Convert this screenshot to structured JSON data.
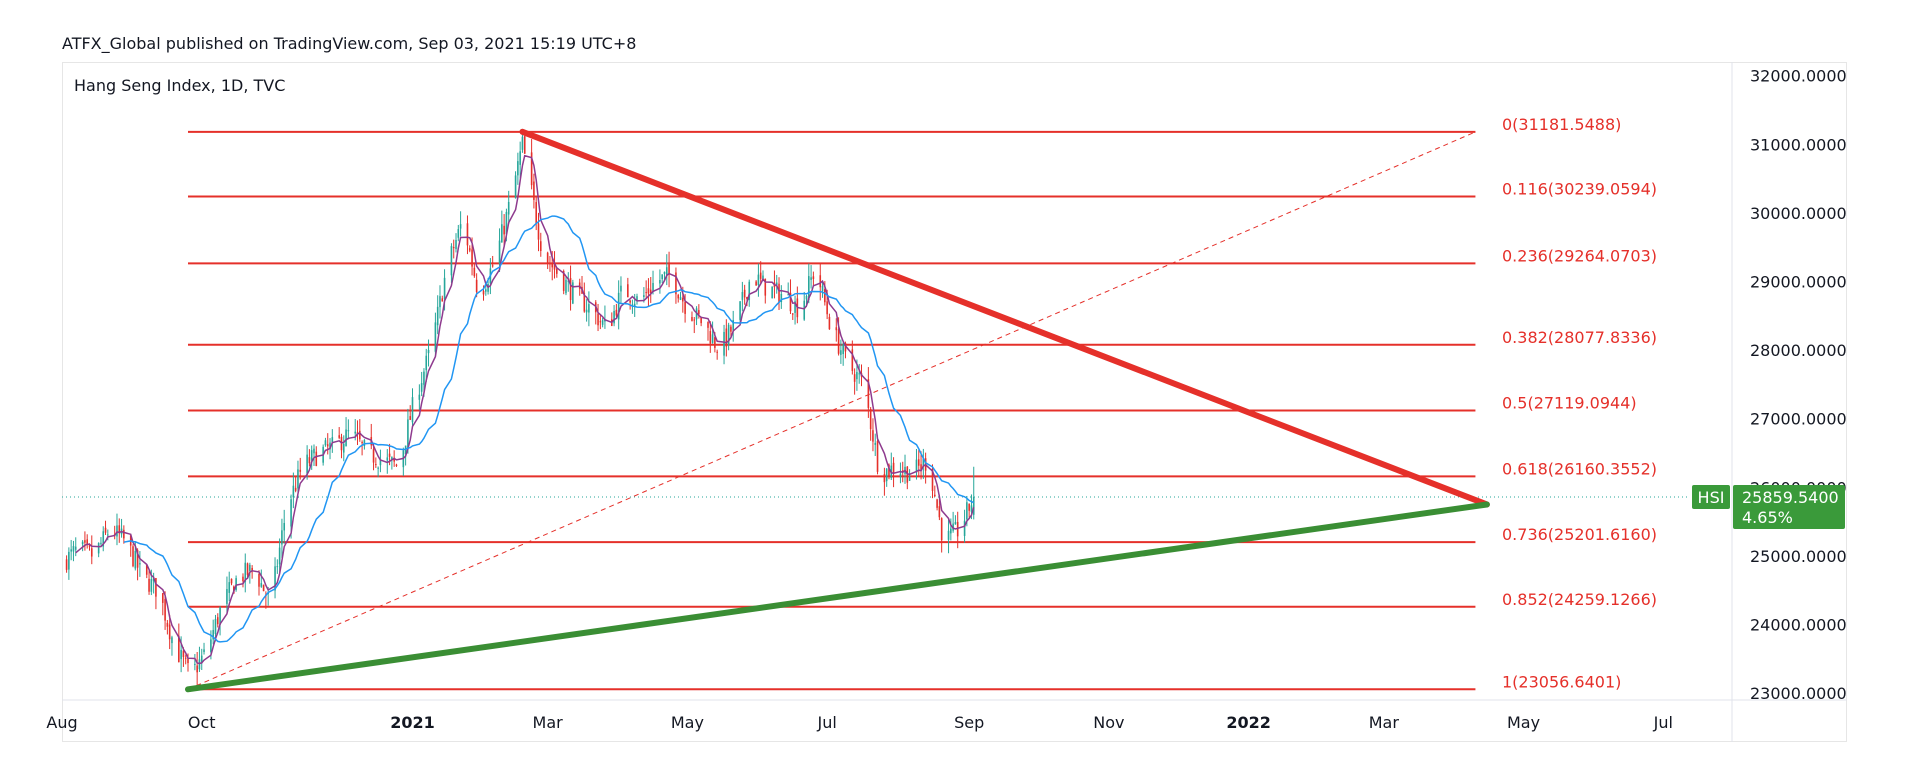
{
  "header": {
    "publish_line": "ATFX_Global published on TradingView.com, Sep 03, 2021 15:19 UTC+8"
  },
  "chart": {
    "symbol_line": "Hang Seng Index, 1D, TVC"
  },
  "price_tag": {
    "symbol": "HSI",
    "price": "25859.5400",
    "change": "4.65%"
  },
  "colors": {
    "fib_line": "#e5302a",
    "up_candle": "#26a69a",
    "down_candle": "#e5302a",
    "resistance_line": "#e5302a",
    "support_line": "#3a8e34",
    "ma_fast": "#8e3a8e",
    "ma_slow": "#2196f3",
    "price_tag_bg": "#3a9a3a"
  },
  "chart_data": {
    "type": "candlestick",
    "ylim": [
      22900,
      32200
    ],
    "xlim": [
      "2020-08-01",
      "2022-07-31"
    ],
    "y_ticks": [
      "23000.0000",
      "24000.0000",
      "25000.0000",
      "26000.0000",
      "27000.0000",
      "28000.0000",
      "29000.0000",
      "30000.0000",
      "31000.0000",
      "32000.0000"
    ],
    "x_ticks": [
      {
        "label": "Aug",
        "date": "2020-08-01",
        "bold": false
      },
      {
        "label": "Oct",
        "date": "2020-10-01",
        "bold": false
      },
      {
        "label": "2021",
        "date": "2021-01-01",
        "bold": true
      },
      {
        "label": "Mar",
        "date": "2021-03-01",
        "bold": false
      },
      {
        "label": "May",
        "date": "2021-05-01",
        "bold": false
      },
      {
        "label": "Jul",
        "date": "2021-07-01",
        "bold": false
      },
      {
        "label": "Sep",
        "date": "2021-09-01",
        "bold": false
      },
      {
        "label": "Nov",
        "date": "2021-11-01",
        "bold": false
      },
      {
        "label": "2022",
        "date": "2022-01-01",
        "bold": true
      },
      {
        "label": "Mar",
        "date": "2022-03-01",
        "bold": false
      },
      {
        "label": "May",
        "date": "2022-05-01",
        "bold": false
      },
      {
        "label": "Jul",
        "date": "2022-07-01",
        "bold": false
      }
    ],
    "fib_levels": [
      {
        "label": "0(31181.5488)",
        "value": 31181.5488
      },
      {
        "label": "0.116(30239.0594)",
        "value": 30239.0594
      },
      {
        "label": "0.236(29264.0703)",
        "value": 29264.0703
      },
      {
        "label": "0.382(28077.8336)",
        "value": 28077.8336
      },
      {
        "label": "0.5(27119.0944)",
        "value": 27119.0944
      },
      {
        "label": "0.618(26160.3552)",
        "value": 26160.3552
      },
      {
        "label": "0.736(25201.6160)",
        "value": 25201.616
      },
      {
        "label": "0.852(24259.1266)",
        "value": 24259.1266
      },
      {
        "label": "1(23056.6401)",
        "value": 23056.6401
      }
    ],
    "fib_start": "2020-09-25",
    "fib_end": "2022-04-10",
    "resistance_trendline": [
      [
        "2021-02-18",
        31183
      ],
      [
        "2022-04-15",
        25750
      ]
    ],
    "support_trendline": [
      [
        "2020-09-25",
        23056
      ],
      [
        "2022-04-15",
        25750
      ]
    ],
    "dashed_fib_diagonal": [
      [
        "2020-09-25",
        23056
      ],
      [
        "2022-04-10",
        31181
      ]
    ],
    "last_close": 25859.54,
    "closes": [
      [
        "2020-08-01",
        24900
      ],
      [
        "2020-08-08",
        25100
      ],
      [
        "2020-08-15",
        25000
      ],
      [
        "2020-08-22",
        25400
      ],
      [
        "2020-08-29",
        25200
      ],
      [
        "2020-09-05",
        24700
      ],
      [
        "2020-09-12",
        24500
      ],
      [
        "2020-09-19",
        23700
      ],
      [
        "2020-09-26",
        23250
      ],
      [
        "2020-10-03",
        23600
      ],
      [
        "2020-10-10",
        24300
      ],
      [
        "2020-10-17",
        24700
      ],
      [
        "2020-10-24",
        24800
      ],
      [
        "2020-10-31",
        24300
      ],
      [
        "2020-11-07",
        25700
      ],
      [
        "2020-11-14",
        26300
      ],
      [
        "2020-11-21",
        26500
      ],
      [
        "2020-11-28",
        26600
      ],
      [
        "2020-12-05",
        26800
      ],
      [
        "2020-12-12",
        26500
      ],
      [
        "2020-12-19",
        26400
      ],
      [
        "2020-12-26",
        26300
      ],
      [
        "2021-01-02",
        27300
      ],
      [
        "2021-01-09",
        28000
      ],
      [
        "2021-01-16",
        29200
      ],
      [
        "2021-01-23",
        29900
      ],
      [
        "2021-01-30",
        28800
      ],
      [
        "2021-02-06",
        29300
      ],
      [
        "2021-02-13",
        30200
      ],
      [
        "2021-02-18",
        31000
      ],
      [
        "2021-02-27",
        29400
      ],
      [
        "2021-03-06",
        29100
      ],
      [
        "2021-03-13",
        28800
      ],
      [
        "2021-03-20",
        28600
      ],
      [
        "2021-03-27",
        28300
      ],
      [
        "2021-04-03",
        28900
      ],
      [
        "2021-04-10",
        28700
      ],
      [
        "2021-04-17",
        29000
      ],
      [
        "2021-04-24",
        29100
      ],
      [
        "2021-05-01",
        28600
      ],
      [
        "2021-05-08",
        28400
      ],
      [
        "2021-05-15",
        28000
      ],
      [
        "2021-05-22",
        28400
      ],
      [
        "2021-05-29",
        29100
      ],
      [
        "2021-06-05",
        28900
      ],
      [
        "2021-06-12",
        28800
      ],
      [
        "2021-06-19",
        28600
      ],
      [
        "2021-06-26",
        29200
      ],
      [
        "2021-07-03",
        28300
      ],
      [
        "2021-07-10",
        27800
      ],
      [
        "2021-07-17",
        27500
      ],
      [
        "2021-07-24",
        26200
      ],
      [
        "2021-07-31",
        26300
      ],
      [
        "2021-08-07",
        26200
      ],
      [
        "2021-08-14",
        26400
      ],
      [
        "2021-08-21",
        25200
      ],
      [
        "2021-08-28",
        25400
      ],
      [
        "2021-09-03",
        25860
      ]
    ]
  }
}
